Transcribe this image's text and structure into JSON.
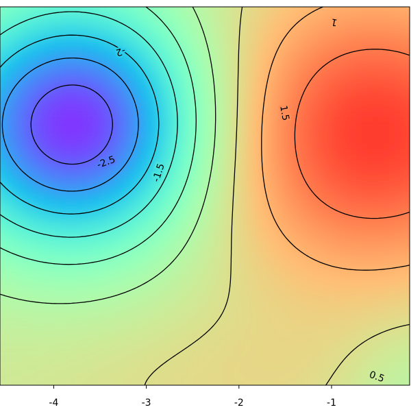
{
  "chart_data": {
    "type": "contour",
    "levels": [
      -2.5,
      -2,
      -1.5,
      -1,
      -0.5,
      0,
      0.5,
      1,
      1.5
    ],
    "xlim": [
      -4.58,
      -0.157
    ],
    "xticks": [
      -4,
      -3,
      -2,
      -1
    ],
    "colormap": "rainbow"
  }
}
